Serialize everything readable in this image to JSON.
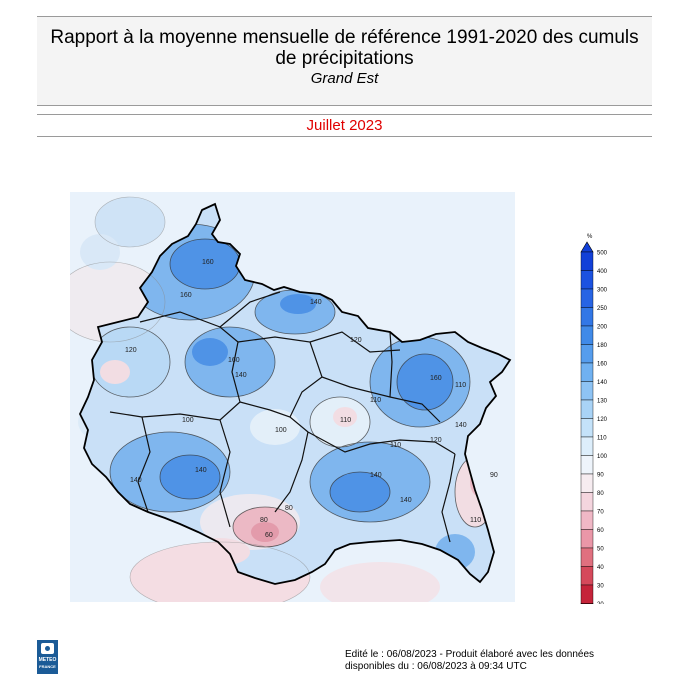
{
  "header": {
    "title_line1": "Rapport à la moyenne mensuelle de référence 1991-2020 des cumuls",
    "title_line2": "de précipitations",
    "region": "Grand Est"
  },
  "period": {
    "label": "Juillet 2023"
  },
  "legend": {
    "unit": "%",
    "levels": [
      "500",
      "400",
      "300",
      "250",
      "200",
      "180",
      "160",
      "140",
      "130",
      "120",
      "110",
      "100",
      "90",
      "80",
      "70",
      "60",
      "50",
      "40",
      "30",
      "20"
    ],
    "colors": [
      "#1240d8",
      "#1c52e0",
      "#2764e4",
      "#3277e6",
      "#408ae8",
      "#569ded",
      "#70b1f1",
      "#8ec3f4",
      "#a9d3f6",
      "#c4e2f9",
      "#ddeefb",
      "#eef4fb",
      "#f6ecf0",
      "#f4d5de",
      "#f0b8c6",
      "#ea97a8",
      "#e0707f",
      "#d5495b",
      "#c5243a",
      "#b5081d"
    ]
  },
  "map": {
    "contour_labels": [
      "160",
      "160",
      "140",
      "140",
      "120",
      "120",
      "110",
      "100",
      "140",
      "160",
      "160",
      "110",
      "140",
      "110",
      "80",
      "80",
      "60",
      "140",
      "110",
      "140",
      "110",
      "120",
      "140",
      "100",
      "90"
    ],
    "palette": {
      "deep_blue": "#4f93e6",
      "mid_blue": "#7fb6ee",
      "light_blue": "#b9d9f5",
      "pale_blue": "#e3eff9",
      "neutral": "#ece9f0",
      "pale_red": "#f2dde3",
      "light_red": "#ecb9c5",
      "mid_red": "#e39bab"
    }
  },
  "logo": {
    "line1": "METEO",
    "line2": "FRANCE"
  },
  "footer": {
    "line1": "Edité le : 06/08/2023 - Produit élaboré avec les données",
    "line2": "disponibles du : 06/08/2023 à 09:34 UTC"
  }
}
